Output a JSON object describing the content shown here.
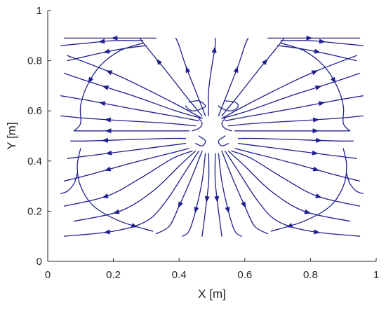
{
  "chart_data": {
    "type": "streamline",
    "xlabel": "X [m]",
    "ylabel": "Y [m]",
    "xlim": [
      0,
      1
    ],
    "ylim": [
      0,
      1
    ],
    "xticks": [
      0,
      0.2,
      0.4,
      0.6,
      0.8,
      1
    ],
    "xtick_labels": [
      "0",
      "0.2",
      "0.4",
      "0.6",
      "0.8",
      "1"
    ],
    "yticks": [
      0,
      0.2,
      0.4,
      0.6,
      0.8,
      1
    ],
    "ytick_labels": [
      "0",
      "0.2",
      "0.4",
      "0.6",
      "0.8",
      "1"
    ],
    "grid": false,
    "line_color": "#1f1f8f",
    "domain_extent": {
      "x": [
        0.03,
        0.97
      ],
      "y": [
        0.09,
        0.9
      ]
    },
    "obstacle_center": [
      0.5,
      0.52
    ],
    "source_points": [
      [
        0.47,
        0.56
      ],
      [
        0.53,
        0.56
      ],
      [
        0.45,
        0.49
      ],
      [
        0.55,
        0.49
      ],
      [
        0.42,
        0.48
      ],
      [
        0.58,
        0.48
      ]
    ],
    "streamlines": [
      {
        "points": [
          [
            0.47,
            0.57
          ],
          [
            0.4,
            0.62
          ],
          [
            0.28,
            0.7
          ],
          [
            0.18,
            0.76
          ],
          [
            0.06,
            0.82
          ]
        ],
        "arrow": 0.7
      },
      {
        "points": [
          [
            0.47,
            0.57
          ],
          [
            0.39,
            0.6
          ],
          [
            0.26,
            0.66
          ],
          [
            0.14,
            0.71
          ],
          [
            0.05,
            0.75
          ]
        ],
        "arrow": 0.7
      },
      {
        "points": [
          [
            0.46,
            0.56
          ],
          [
            0.38,
            0.58
          ],
          [
            0.25,
            0.61
          ],
          [
            0.13,
            0.64
          ],
          [
            0.04,
            0.66
          ]
        ],
        "arrow": 0.7
      },
      {
        "points": [
          [
            0.45,
            0.54
          ],
          [
            0.37,
            0.55
          ],
          [
            0.24,
            0.56
          ],
          [
            0.12,
            0.57
          ],
          [
            0.04,
            0.58
          ]
        ],
        "arrow": 0.65
      },
      {
        "points": [
          [
            0.43,
            0.52
          ],
          [
            0.36,
            0.52
          ],
          [
            0.24,
            0.52
          ],
          [
            0.12,
            0.52
          ],
          [
            0.08,
            0.52
          ]
        ],
        "arrow": 0.7
      },
      {
        "points": [
          [
            0.42,
            0.49
          ],
          [
            0.36,
            0.49
          ],
          [
            0.24,
            0.485
          ],
          [
            0.12,
            0.48
          ],
          [
            0.07,
            0.48
          ]
        ],
        "arrow": 0.7
      },
      {
        "points": [
          [
            0.42,
            0.47
          ],
          [
            0.36,
            0.46
          ],
          [
            0.24,
            0.44
          ],
          [
            0.12,
            0.42
          ],
          [
            0.06,
            0.41
          ]
        ],
        "arrow": 0.65
      },
      {
        "points": [
          [
            0.43,
            0.45
          ],
          [
            0.37,
            0.43
          ],
          [
            0.25,
            0.39
          ],
          [
            0.14,
            0.35
          ],
          [
            0.05,
            0.32
          ]
        ],
        "arrow": 0.65
      },
      {
        "points": [
          [
            0.44,
            0.44
          ],
          [
            0.38,
            0.41
          ],
          [
            0.28,
            0.33
          ],
          [
            0.18,
            0.26
          ],
          [
            0.05,
            0.22
          ]
        ],
        "arrow": 0.7
      },
      {
        "points": [
          [
            0.45,
            0.44
          ],
          [
            0.4,
            0.38
          ],
          [
            0.32,
            0.28
          ],
          [
            0.22,
            0.2
          ],
          [
            0.08,
            0.16
          ]
        ],
        "arrow": 0.7
      },
      {
        "points": [
          [
            0.46,
            0.44
          ],
          [
            0.42,
            0.36
          ],
          [
            0.36,
            0.24
          ],
          [
            0.3,
            0.16
          ],
          [
            0.2,
            0.12
          ],
          [
            0.05,
            0.1
          ]
        ],
        "arrow": 0.75
      },
      {
        "points": [
          [
            0.47,
            0.44
          ],
          [
            0.44,
            0.34
          ],
          [
            0.4,
            0.22
          ],
          [
            0.37,
            0.14
          ],
          [
            0.33,
            0.11
          ]
        ],
        "arrow": 0.6
      },
      {
        "points": [
          [
            0.48,
            0.43
          ],
          [
            0.47,
            0.32
          ],
          [
            0.45,
            0.2
          ],
          [
            0.43,
            0.12
          ],
          [
            0.41,
            0.1
          ]
        ],
        "arrow": 0.65
      },
      {
        "points": [
          [
            0.49,
            0.43
          ],
          [
            0.49,
            0.32
          ],
          [
            0.48,
            0.2
          ],
          [
            0.47,
            0.1
          ]
        ],
        "arrow": 0.55
      },
      {
        "points": [
          [
            0.51,
            0.43
          ],
          [
            0.51,
            0.32
          ],
          [
            0.52,
            0.2
          ],
          [
            0.53,
            0.1
          ]
        ],
        "arrow": 0.55
      },
      {
        "points": [
          [
            0.52,
            0.43
          ],
          [
            0.53,
            0.32
          ],
          [
            0.55,
            0.2
          ],
          [
            0.57,
            0.12
          ],
          [
            0.59,
            0.1
          ]
        ],
        "arrow": 0.65
      },
      {
        "points": [
          [
            0.53,
            0.44
          ],
          [
            0.56,
            0.34
          ],
          [
            0.6,
            0.22
          ],
          [
            0.63,
            0.14
          ],
          [
            0.67,
            0.11
          ]
        ],
        "arrow": 0.6
      },
      {
        "points": [
          [
            0.54,
            0.44
          ],
          [
            0.58,
            0.36
          ],
          [
            0.64,
            0.24
          ],
          [
            0.7,
            0.16
          ],
          [
            0.8,
            0.12
          ],
          [
            0.95,
            0.1
          ]
        ],
        "arrow": 0.75
      },
      {
        "points": [
          [
            0.55,
            0.44
          ],
          [
            0.6,
            0.38
          ],
          [
            0.68,
            0.28
          ],
          [
            0.78,
            0.2
          ],
          [
            0.92,
            0.16
          ]
        ],
        "arrow": 0.7
      },
      {
        "points": [
          [
            0.56,
            0.44
          ],
          [
            0.62,
            0.41
          ],
          [
            0.72,
            0.33
          ],
          [
            0.82,
            0.26
          ],
          [
            0.95,
            0.22
          ]
        ],
        "arrow": 0.7
      },
      {
        "points": [
          [
            0.57,
            0.45
          ],
          [
            0.63,
            0.43
          ],
          [
            0.75,
            0.39
          ],
          [
            0.86,
            0.35
          ],
          [
            0.95,
            0.32
          ]
        ],
        "arrow": 0.65
      },
      {
        "points": [
          [
            0.58,
            0.47
          ],
          [
            0.64,
            0.46
          ],
          [
            0.76,
            0.44
          ],
          [
            0.88,
            0.42
          ],
          [
            0.94,
            0.41
          ]
        ],
        "arrow": 0.65
      },
      {
        "points": [
          [
            0.58,
            0.49
          ],
          [
            0.64,
            0.49
          ],
          [
            0.76,
            0.485
          ],
          [
            0.88,
            0.48
          ],
          [
            0.93,
            0.48
          ]
        ],
        "arrow": 0.7
      },
      {
        "points": [
          [
            0.57,
            0.52
          ],
          [
            0.64,
            0.52
          ],
          [
            0.76,
            0.52
          ],
          [
            0.88,
            0.52
          ],
          [
            0.92,
            0.52
          ]
        ],
        "arrow": 0.7
      },
      {
        "points": [
          [
            0.55,
            0.54
          ],
          [
            0.63,
            0.55
          ],
          [
            0.76,
            0.56
          ],
          [
            0.88,
            0.57
          ],
          [
            0.96,
            0.58
          ]
        ],
        "arrow": 0.65
      },
      {
        "points": [
          [
            0.54,
            0.56
          ],
          [
            0.62,
            0.58
          ],
          [
            0.75,
            0.61
          ],
          [
            0.87,
            0.64
          ],
          [
            0.96,
            0.66
          ]
        ],
        "arrow": 0.7
      },
      {
        "points": [
          [
            0.53,
            0.57
          ],
          [
            0.61,
            0.6
          ],
          [
            0.74,
            0.66
          ],
          [
            0.86,
            0.71
          ],
          [
            0.95,
            0.75
          ]
        ],
        "arrow": 0.7
      },
      {
        "points": [
          [
            0.53,
            0.57
          ],
          [
            0.6,
            0.62
          ],
          [
            0.72,
            0.7
          ],
          [
            0.82,
            0.76
          ],
          [
            0.94,
            0.82
          ]
        ],
        "arrow": 0.7
      },
      {
        "points": [
          [
            0.47,
            0.58
          ],
          [
            0.42,
            0.66
          ],
          [
            0.36,
            0.76
          ],
          [
            0.31,
            0.84
          ],
          [
            0.28,
            0.89
          ]
        ],
        "arrow": 0.7
      },
      {
        "points": [
          [
            0.48,
            0.58
          ],
          [
            0.45,
            0.68
          ],
          [
            0.42,
            0.78
          ],
          [
            0.4,
            0.86
          ],
          [
            0.39,
            0.89
          ]
        ],
        "arrow": 0.6
      },
      {
        "points": [
          [
            0.49,
            0.58
          ],
          [
            0.49,
            0.68
          ],
          [
            0.5,
            0.78
          ],
          [
            0.51,
            0.86
          ],
          [
            0.51,
            0.89
          ]
        ],
        "arrow": 0.85
      },
      {
        "points": [
          [
            0.52,
            0.58
          ],
          [
            0.55,
            0.68
          ],
          [
            0.58,
            0.78
          ],
          [
            0.6,
            0.86
          ],
          [
            0.61,
            0.89
          ]
        ],
        "arrow": 0.6
      },
      {
        "points": [
          [
            0.53,
            0.58
          ],
          [
            0.58,
            0.66
          ],
          [
            0.64,
            0.76
          ],
          [
            0.69,
            0.84
          ],
          [
            0.72,
            0.89
          ]
        ],
        "arrow": 0.7
      },
      {
        "points": [
          [
            0.29,
            0.87
          ],
          [
            0.22,
            0.84
          ],
          [
            0.16,
            0.78
          ],
          [
            0.12,
            0.7
          ],
          [
            0.1,
            0.62
          ],
          [
            0.1,
            0.55
          ],
          [
            0.08,
            0.52
          ]
        ],
        "arrow": 0.55
      },
      {
        "points": [
          [
            0.71,
            0.87
          ],
          [
            0.78,
            0.84
          ],
          [
            0.84,
            0.78
          ],
          [
            0.88,
            0.7
          ],
          [
            0.9,
            0.62
          ],
          [
            0.9,
            0.55
          ],
          [
            0.92,
            0.52
          ]
        ],
        "arrow": 0.55
      },
      {
        "points": [
          [
            0.1,
            0.45
          ],
          [
            0.09,
            0.38
          ],
          [
            0.1,
            0.3
          ],
          [
            0.14,
            0.22
          ],
          [
            0.22,
            0.16
          ],
          [
            0.32,
            0.12
          ]
        ],
        "arrow": 0.85
      },
      {
        "points": [
          [
            0.9,
            0.45
          ],
          [
            0.91,
            0.38
          ],
          [
            0.9,
            0.3
          ],
          [
            0.86,
            0.22
          ],
          [
            0.78,
            0.16
          ],
          [
            0.68,
            0.12
          ]
        ],
        "arrow": 0.85
      },
      {
        "points": [
          [
            0.29,
            0.88
          ],
          [
            0.2,
            0.88
          ],
          [
            0.12,
            0.87
          ],
          [
            0.04,
            0.86
          ]
        ],
        "arrow": 0.5
      },
      {
        "points": [
          [
            0.71,
            0.88
          ],
          [
            0.8,
            0.88
          ],
          [
            0.88,
            0.87
          ],
          [
            0.96,
            0.86
          ]
        ],
        "arrow": 0.5
      },
      {
        "points": [
          [
            0.33,
            0.89
          ],
          [
            0.24,
            0.89
          ],
          [
            0.14,
            0.89
          ],
          [
            0.05,
            0.89
          ]
        ],
        "arrow": 0.45
      },
      {
        "points": [
          [
            0.67,
            0.89
          ],
          [
            0.76,
            0.89
          ],
          [
            0.86,
            0.89
          ],
          [
            0.95,
            0.89
          ]
        ],
        "arrow": 0.45
      },
      {
        "points": [
          [
            0.3,
            0.86
          ],
          [
            0.24,
            0.85
          ],
          [
            0.16,
            0.83
          ],
          [
            0.06,
            0.8
          ]
        ],
        "arrow": 0.5
      },
      {
        "points": [
          [
            0.7,
            0.86
          ],
          [
            0.76,
            0.85
          ],
          [
            0.84,
            0.83
          ],
          [
            0.94,
            0.8
          ]
        ],
        "arrow": 0.5
      },
      {
        "points": [
          [
            0.42,
            0.62
          ],
          [
            0.43,
            0.605
          ],
          [
            0.45,
            0.6
          ],
          [
            0.47,
            0.61
          ],
          [
            0.48,
            0.62
          ],
          [
            0.46,
            0.64
          ],
          [
            0.43,
            0.635
          ]
        ],
        "arrow": -1
      },
      {
        "points": [
          [
            0.52,
            0.62
          ],
          [
            0.53,
            0.61
          ],
          [
            0.55,
            0.6
          ],
          [
            0.57,
            0.605
          ],
          [
            0.58,
            0.62
          ],
          [
            0.57,
            0.635
          ],
          [
            0.54,
            0.64
          ]
        ],
        "arrow": -1
      },
      {
        "points": [
          [
            0.44,
            0.52
          ],
          [
            0.46,
            0.53
          ],
          [
            0.47,
            0.55
          ],
          [
            0.46,
            0.57
          ]
        ],
        "arrow": -1
      },
      {
        "points": [
          [
            0.56,
            0.52
          ],
          [
            0.54,
            0.53
          ],
          [
            0.53,
            0.55
          ],
          [
            0.54,
            0.57
          ]
        ],
        "arrow": -1
      },
      {
        "points": [
          [
            0.45,
            0.47
          ],
          [
            0.47,
            0.46
          ],
          [
            0.48,
            0.48
          ],
          [
            0.46,
            0.5
          ]
        ],
        "arrow": -1
      },
      {
        "points": [
          [
            0.55,
            0.47
          ],
          [
            0.53,
            0.46
          ],
          [
            0.52,
            0.48
          ],
          [
            0.54,
            0.5
          ]
        ],
        "arrow": -1
      },
      {
        "points": [
          [
            0.04,
            0.27
          ],
          [
            0.06,
            0.28
          ],
          [
            0.08,
            0.31
          ],
          [
            0.09,
            0.35
          ]
        ],
        "arrow": -1
      },
      {
        "points": [
          [
            0.96,
            0.27
          ],
          [
            0.94,
            0.28
          ],
          [
            0.92,
            0.31
          ],
          [
            0.91,
            0.35
          ]
        ],
        "arrow": -1
      }
    ]
  }
}
